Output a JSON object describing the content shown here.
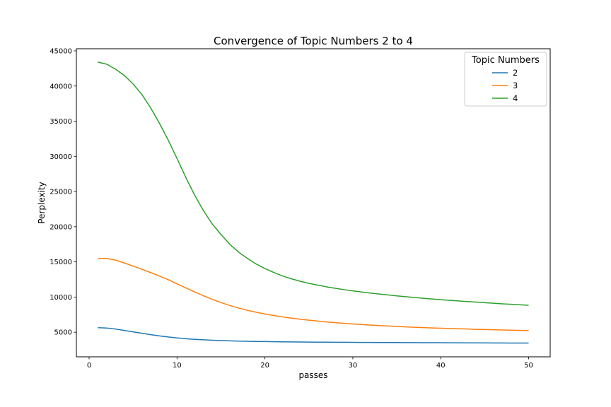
{
  "chart_data": {
    "type": "line",
    "title": "Convergence of Topic Numbers 2 to 4",
    "xlabel": "passes",
    "ylabel": "Perplexity",
    "xlim": [
      -1.45,
      52.45
    ],
    "ylim": [
      1500,
      45300
    ],
    "xticks": [
      0,
      10,
      20,
      30,
      40,
      50
    ],
    "yticks": [
      5000,
      10000,
      15000,
      20000,
      25000,
      30000,
      35000,
      40000,
      45000
    ],
    "grid": false,
    "legend": {
      "title": "Topic  Numbers",
      "placement": "top-right"
    },
    "x": [
      1,
      2,
      3,
      4,
      5,
      6,
      7,
      8,
      9,
      10,
      11,
      12,
      13,
      14,
      15,
      16,
      17,
      18,
      19,
      20,
      21,
      22,
      23,
      24,
      25,
      26,
      27,
      28,
      29,
      30,
      31,
      32,
      33,
      34,
      35,
      36,
      37,
      38,
      39,
      40,
      41,
      42,
      43,
      44,
      45,
      46,
      47,
      48,
      49,
      50
    ],
    "series": [
      {
        "name": "2",
        "color": "#1f77b4",
        "values": [
          5650,
          5600,
          5450,
          5250,
          5050,
          4850,
          4650,
          4480,
          4320,
          4190,
          4080,
          3990,
          3920,
          3860,
          3810,
          3770,
          3740,
          3710,
          3690,
          3670,
          3650,
          3640,
          3620,
          3610,
          3600,
          3590,
          3580,
          3575,
          3570,
          3560,
          3550,
          3545,
          3540,
          3535,
          3530,
          3525,
          3520,
          3515,
          3510,
          3505,
          3500,
          3495,
          3490,
          3485,
          3480,
          3475,
          3470,
          3465,
          3460,
          3455
        ]
      },
      {
        "name": "3",
        "color": "#ff7f0e",
        "values": [
          15500,
          15490,
          15250,
          14850,
          14400,
          13950,
          13480,
          12980,
          12470,
          11880,
          11300,
          10740,
          10190,
          9680,
          9220,
          8800,
          8440,
          8120,
          7840,
          7590,
          7380,
          7180,
          7000,
          6850,
          6710,
          6580,
          6460,
          6360,
          6260,
          6170,
          6090,
          6010,
          5940,
          5880,
          5820,
          5760,
          5710,
          5660,
          5610,
          5570,
          5530,
          5490,
          5450,
          5410,
          5380,
          5350,
          5320,
          5290,
          5260,
          5240
        ]
      },
      {
        "name": "4",
        "color": "#2ca02c",
        "values": [
          43400,
          43100,
          42400,
          41500,
          40300,
          38800,
          36900,
          34700,
          32300,
          29700,
          27000,
          24500,
          22300,
          20400,
          18900,
          17500,
          16400,
          15500,
          14700,
          14050,
          13500,
          13000,
          12600,
          12250,
          11950,
          11700,
          11450,
          11250,
          11050,
          10880,
          10720,
          10570,
          10430,
          10300,
          10170,
          10050,
          9940,
          9830,
          9730,
          9630,
          9540,
          9450,
          9360,
          9280,
          9200,
          9120,
          9040,
          8970,
          8900,
          8830
        ]
      }
    ]
  }
}
